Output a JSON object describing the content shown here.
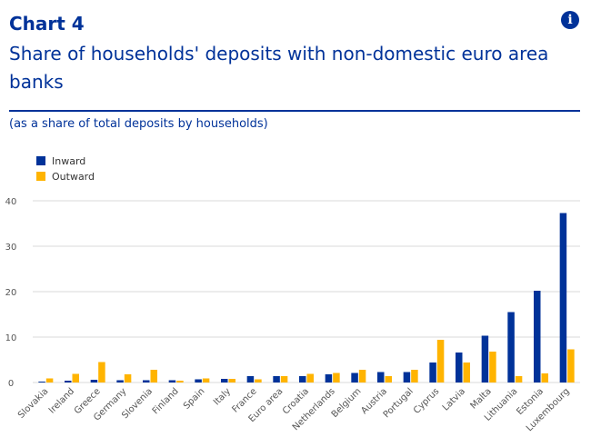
{
  "header": {
    "chart_number": "Chart 4",
    "title": "Share of households' deposits with non-domestic euro area banks",
    "subtitle": "(as a share of total deposits by households)",
    "info_icon": "info-icon"
  },
  "colors": {
    "inward": "#003299",
    "outward": "#ffb400",
    "grid": "#d9d9d9",
    "text": "#003299",
    "tick": "#555555"
  },
  "chart_data": {
    "type": "bar",
    "categories": [
      "Slovakia",
      "Ireland",
      "Greece",
      "Germany",
      "Slovenia",
      "Finland",
      "Spain",
      "Italy",
      "France",
      "Euro area",
      "Croatia",
      "Netherlands",
      "Belgium",
      "Austria",
      "Portugal",
      "Cyprus",
      "Latvia",
      "Malta",
      "Lithuania",
      "Estonia",
      "Luxembourg"
    ],
    "series": [
      {
        "name": "Inward",
        "values": [
          0.2,
          0.4,
          0.6,
          0.5,
          0.5,
          0.5,
          0.7,
          0.8,
          1.4,
          1.4,
          1.4,
          1.8,
          2.1,
          2.3,
          2.3,
          4.4,
          6.6,
          10.3,
          15.5,
          20.2,
          37.3
        ]
      },
      {
        "name": "Outward",
        "values": [
          0.9,
          1.9,
          4.5,
          1.8,
          2.8,
          0.4,
          0.9,
          0.8,
          0.7,
          1.4,
          1.9,
          2.1,
          2.8,
          1.4,
          2.8,
          9.4,
          4.4,
          6.8,
          1.4,
          2.0,
          7.3
        ]
      }
    ],
    "ylim": [
      0,
      40
    ],
    "yticks": [
      0,
      10,
      20,
      30,
      40
    ],
    "grid": true,
    "legend": "top-left"
  }
}
